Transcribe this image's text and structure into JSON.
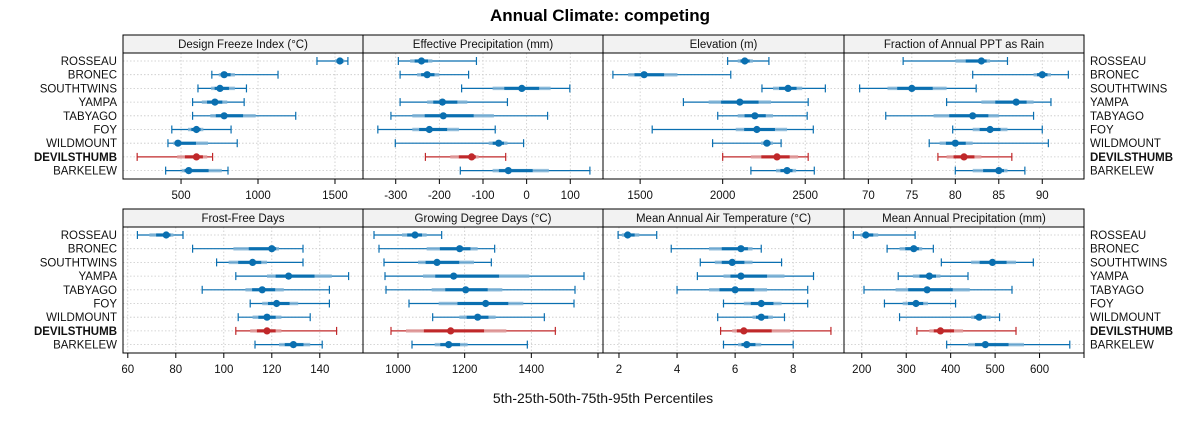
{
  "chart_data": {
    "type": "dotplot-percentile",
    "title": "Annual Climate: competing",
    "xlabel": "5th-25th-50th-75th-95th Percentiles",
    "percentiles": [
      "p5",
      "p25",
      "p50",
      "p75",
      "p95"
    ],
    "sites": [
      "ROSSEAU",
      "BRONEC",
      "SOUTHTWINS",
      "YAMPA",
      "TABYAGO",
      "FOY",
      "WILDMOUNT",
      "DEVILSTHUMB",
      "BARKELEW"
    ],
    "highlight_site": "DEVILSTHUMB",
    "colors": {
      "default": "#0a6fb0",
      "default_light": "#7fb3d6",
      "highlight": "#c0282a",
      "highlight_light": "#e0a0a0",
      "grid": "#c8c8c8",
      "strip": "#f2f2f2"
    },
    "grid": true,
    "panels": [
      {
        "name": "Design Freeze Index (°C)",
        "xlim": [
          123,
          1682
        ],
        "ticks": [
          500,
          1000,
          1500
        ],
        "tick_labels": [
          "500",
          "1000",
          "1500"
        ],
        "values": [
          [
            1383,
            1500,
            1532,
            1560,
            1584
          ],
          [
            700,
            745,
            780,
            850,
            1130
          ],
          [
            610,
            695,
            753,
            850,
            925
          ],
          [
            575,
            635,
            720,
            800,
            910
          ],
          [
            575,
            690,
            780,
            985,
            1245
          ],
          [
            440,
            545,
            600,
            645,
            825
          ],
          [
            415,
            450,
            480,
            675,
            865
          ],
          [
            215,
            475,
            600,
            670,
            705
          ],
          [
            400,
            505,
            550,
            765,
            805
          ]
        ]
      },
      {
        "name": "Effective Precipitation (mm)",
        "xlim": [
          -375,
          175
        ],
        "ticks": [
          -300,
          -200,
          -100,
          0,
          100
        ],
        "tick_labels": [
          "-300",
          "-200",
          "-100",
          "0",
          "100"
        ],
        "values": [
          [
            -294,
            -267,
            -241,
            -216,
            -115
          ],
          [
            -290,
            -251,
            -228,
            -200,
            -133
          ],
          [
            -149,
            -78,
            -11,
            55,
            99
          ],
          [
            -290,
            -228,
            -193,
            -136,
            -44
          ],
          [
            -311,
            -262,
            -191,
            -75,
            48
          ],
          [
            -341,
            -262,
            -223,
            -155,
            -72
          ],
          [
            -301,
            -87,
            -64,
            -44,
            -7
          ],
          [
            -232,
            -175,
            -126,
            -110,
            -48
          ],
          [
            -152,
            -78,
            -42,
            51,
            145
          ]
        ]
      },
      {
        "name": "Elevation (m)",
        "xlim": [
          1275,
          2735
        ],
        "ticks": [
          1500,
          2000,
          2500
        ],
        "tick_labels": [
          "1500",
          "2000",
          "2500"
        ],
        "values": [
          [
            2030,
            2091,
            2134,
            2183,
            2280
          ],
          [
            1335,
            1427,
            1524,
            1726,
            2049
          ],
          [
            2238,
            2305,
            2396,
            2482,
            2622
          ],
          [
            1762,
            1915,
            2104,
            2293,
            2518
          ],
          [
            1970,
            2091,
            2195,
            2305,
            2512
          ],
          [
            1573,
            2079,
            2207,
            2390,
            2549
          ],
          [
            1939,
            2232,
            2268,
            2305,
            2354
          ],
          [
            2000,
            2171,
            2329,
            2457,
            2518
          ],
          [
            2171,
            2323,
            2390,
            2445,
            2555
          ]
        ]
      },
      {
        "name": "Fraction of Annual PPT as Rain",
        "xlim": [
          67.2,
          94.8
        ],
        "ticks": [
          70,
          75,
          80,
          85,
          90
        ],
        "tick_labels": [
          "70",
          "75",
          "80",
          "85",
          "90"
        ],
        "values": [
          [
            74,
            80,
            83,
            84,
            86
          ],
          [
            82,
            89,
            90,
            91,
            93
          ],
          [
            69,
            72.2,
            75,
            79,
            82.4
          ],
          [
            79,
            83,
            87,
            89,
            91
          ],
          [
            72,
            77.5,
            82,
            85,
            89
          ],
          [
            79.7,
            82,
            84,
            86,
            90
          ],
          [
            77,
            78.2,
            80,
            82,
            90.7
          ],
          [
            78,
            79,
            81,
            83,
            86.5
          ],
          [
            80,
            82,
            85,
            86,
            88
          ]
        ]
      },
      {
        "name": "Frost-Free Days",
        "xlim": [
          58,
          158
        ],
        "ticks": [
          60,
          80,
          100,
          120,
          140
        ],
        "tick_labels": [
          "60",
          "80",
          "100",
          "120",
          "140"
        ],
        "values": [
          [
            64,
            69,
            76,
            79,
            83
          ],
          [
            87,
            104,
            120,
            123,
            133
          ],
          [
            97,
            102,
            112,
            118,
            133
          ],
          [
            105,
            118,
            127,
            145,
            152
          ],
          [
            91,
            109,
            116,
            125,
            144
          ],
          [
            111,
            116,
            122,
            131,
            144
          ],
          [
            106,
            112,
            118,
            124,
            136
          ],
          [
            105,
            111,
            118,
            124,
            147
          ],
          [
            113,
            123,
            129,
            136,
            141
          ]
        ]
      },
      {
        "name": "Growing Degree Days (°C)",
        "xlim": [
          895,
          1615
        ],
        "ticks": [
          1000,
          1200,
          1400,
          1600
        ],
        "tick_labels": [
          "1000",
          "1200",
          "1400",
          ""
        ],
        "values": [
          [
            928,
            1012,
            1051,
            1086,
            1131
          ],
          [
            943,
            1086,
            1185,
            1239,
            1290
          ],
          [
            958,
            1060,
            1117,
            1228,
            1280
          ],
          [
            961,
            1075,
            1167,
            1394,
            1558
          ],
          [
            964,
            1101,
            1203,
            1313,
            1531
          ],
          [
            1033,
            1122,
            1263,
            1376,
            1528
          ],
          [
            1104,
            1184,
            1239,
            1293,
            1439
          ],
          [
            979,
            1024,
            1158,
            1325,
            1472
          ],
          [
            1042,
            1110,
            1152,
            1209,
            1388
          ]
        ]
      },
      {
        "name": "Mean Annual Air Temperature (°C)",
        "xlim": [
          1.45,
          9.75
        ],
        "ticks": [
          2,
          4,
          6,
          8
        ],
        "tick_labels": [
          "2",
          "4",
          "6",
          "8"
        ],
        "values": [
          [
            1.97,
            2.1,
            2.3,
            2.7,
            3.3
          ],
          [
            3.8,
            5.1,
            6.2,
            6.6,
            6.9
          ],
          [
            4.8,
            5.3,
            5.9,
            6.6,
            7.6
          ],
          [
            4.7,
            5.6,
            6.2,
            7.7,
            8.7
          ],
          [
            4.0,
            5.1,
            6.0,
            7.1,
            8.5
          ],
          [
            5.6,
            6.3,
            6.9,
            7.6,
            8.5
          ],
          [
            5.4,
            6.6,
            6.9,
            7.3,
            7.7
          ],
          [
            5.5,
            5.9,
            6.3,
            7.9,
            9.3
          ],
          [
            5.6,
            6.1,
            6.4,
            6.9,
            8.0
          ]
        ]
      },
      {
        "name": "Mean Annual Precipitation (mm)",
        "xlim": [
          160,
          700
        ],
        "ticks": [
          200,
          300,
          400,
          500,
          600,
          700
        ],
        "tick_labels": [
          "200",
          "300",
          "400",
          "500",
          "600",
          ""
        ],
        "values": [
          [
            181,
            197,
            209,
            237,
            320
          ],
          [
            257,
            285,
            317,
            336,
            361
          ],
          [
            379,
            446,
            494,
            547,
            586
          ],
          [
            282,
            315,
            352,
            377,
            439
          ],
          [
            205,
            276,
            347,
            443,
            538
          ],
          [
            251,
            292,
            322,
            349,
            411
          ],
          [
            285,
            446,
            464,
            490,
            510
          ],
          [
            324,
            352,
            377,
            428,
            547
          ],
          [
            391,
            439,
            478,
            565,
            668
          ]
        ]
      }
    ]
  }
}
